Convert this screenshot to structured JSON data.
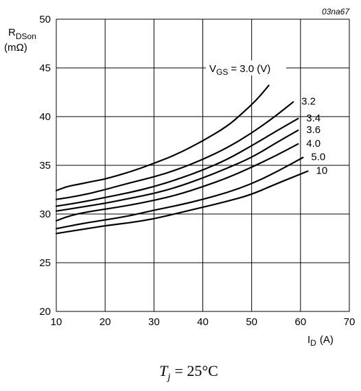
{
  "figure_code": "03na67",
  "condition": {
    "symbol": "T",
    "subscript": "j",
    "value": "= 25°C"
  },
  "chart_data": {
    "type": "line",
    "xlim": [
      10,
      70
    ],
    "ylim": [
      20,
      50
    ],
    "x_ticks": [
      "10",
      "20",
      "30",
      "40",
      "50",
      "60",
      "70"
    ],
    "y_ticks": [
      "20",
      "25",
      "30",
      "35",
      "40",
      "45",
      "50"
    ],
    "grid": true,
    "xlabel": {
      "main": "I",
      "sub": "D",
      "unit": "(A)"
    },
    "ylabel": {
      "main": "R",
      "sub": "DSon",
      "unit": "(mΩ)"
    },
    "series_label_prefix": {
      "main": "V",
      "sub": "GS",
      "text": "= 3.0 (V)"
    },
    "series": [
      {
        "name": "3.0",
        "label": "",
        "x": [
          10,
          12,
          14,
          16,
          18,
          20,
          25,
          30,
          35,
          40,
          45,
          48,
          51,
          53.5
        ],
        "y": [
          32.4,
          32.8,
          33.0,
          33.2,
          33.4,
          33.6,
          34.3,
          35.2,
          36.2,
          37.5,
          39.0,
          40.3,
          41.7,
          43.2
        ]
      },
      {
        "name": "3.2",
        "label": "3.2",
        "x": [
          10,
          15,
          20,
          25,
          30,
          35,
          40,
          45,
          50,
          55,
          58.5
        ],
        "y": [
          31.5,
          31.9,
          32.5,
          33.2,
          33.8,
          34.6,
          35.6,
          36.8,
          38.3,
          40.1,
          41.5
        ]
      },
      {
        "name": "3.4",
        "label": "3.4",
        "x": [
          10,
          15,
          20,
          25,
          30,
          35,
          40,
          45,
          50,
          55,
          59.5
        ],
        "y": [
          30.8,
          31.2,
          31.7,
          32.2,
          32.8,
          33.6,
          34.5,
          35.6,
          37.0,
          38.5,
          39.8
        ]
      },
      {
        "name": "3.6",
        "label": "3.6",
        "x": [
          10,
          15,
          20,
          25,
          30,
          35,
          40,
          45,
          50,
          55,
          59.5
        ],
        "y": [
          30.3,
          30.7,
          31.1,
          31.6,
          32.1,
          32.8,
          33.7,
          34.7,
          35.8,
          37.3,
          38.6
        ]
      },
      {
        "name": "4.0",
        "label": "4.0",
        "x": [
          10,
          12,
          15,
          20,
          25,
          30,
          35,
          40,
          45,
          50,
          55,
          59.5
        ],
        "y": [
          29.3,
          29.7,
          30.1,
          30.5,
          30.9,
          31.4,
          32.0,
          32.8,
          33.7,
          34.8,
          36.0,
          37.2
        ]
      },
      {
        "name": "5.0",
        "label": "5.0",
        "x": [
          10,
          15,
          20,
          25,
          30,
          35,
          40,
          45,
          50,
          55,
          60.5
        ],
        "y": [
          28.5,
          29.0,
          29.4,
          29.8,
          30.4,
          30.9,
          31.5,
          32.2,
          33.1,
          34.3,
          35.8
        ]
      },
      {
        "name": "10",
        "label": "10",
        "x": [
          10,
          15,
          20,
          25,
          30,
          35,
          40,
          45,
          50,
          55,
          61.5
        ],
        "y": [
          28.0,
          28.4,
          28.8,
          29.1,
          29.5,
          30.1,
          30.7,
          31.3,
          32.0,
          33.1,
          34.4
        ]
      }
    ]
  }
}
